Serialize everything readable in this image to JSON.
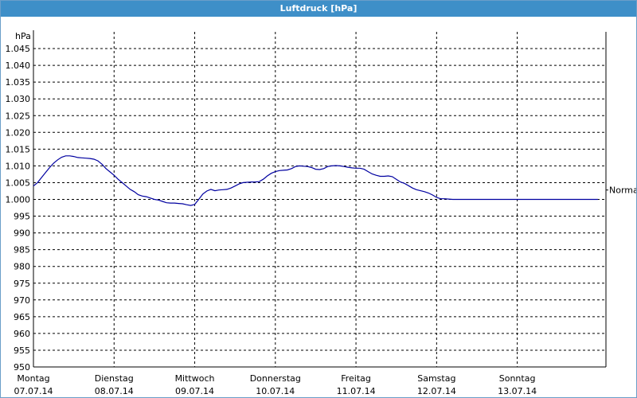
{
  "window": {
    "title": "Luftdruck [hPa]"
  },
  "chart_data": {
    "type": "line",
    "title": "Luftdruck [hPa]",
    "ylabel": "hPa",
    "xlabel": "",
    "ylim": [
      950,
      1050
    ],
    "yticks": [
      {
        "v": 950,
        "label": "950"
      },
      {
        "v": 955,
        "label": "955"
      },
      {
        "v": 960,
        "label": "960"
      },
      {
        "v": 965,
        "label": "965"
      },
      {
        "v": 970,
        "label": "970"
      },
      {
        "v": 975,
        "label": "975"
      },
      {
        "v": 980,
        "label": "980"
      },
      {
        "v": 985,
        "label": "985"
      },
      {
        "v": 990,
        "label": "990"
      },
      {
        "v": 995,
        "label": "995"
      },
      {
        "v": 1000,
        "label": "1.000"
      },
      {
        "v": 1005,
        "label": "1.005"
      },
      {
        "v": 1010,
        "label": "1.010"
      },
      {
        "v": 1015,
        "label": "1.015"
      },
      {
        "v": 1020,
        "label": "1.020"
      },
      {
        "v": 1025,
        "label": "1.025"
      },
      {
        "v": 1030,
        "label": "1.030"
      },
      {
        "v": 1035,
        "label": "1.035"
      },
      {
        "v": 1040,
        "label": "1.040"
      },
      {
        "v": 1045,
        "label": "1.045"
      }
    ],
    "xlim": [
      0,
      7.1
    ],
    "days": [
      {
        "weekday": "Montag",
        "date": "07.07.14"
      },
      {
        "weekday": "Dienstag",
        "date": "08.07.14"
      },
      {
        "weekday": "Mittwoch",
        "date": "09.07.14"
      },
      {
        "weekday": "Donnerstag",
        "date": "10.07.14"
      },
      {
        "weekday": "Freitag",
        "date": "11.07.14"
      },
      {
        "weekday": "Samstag",
        "date": "12.07.14"
      },
      {
        "weekday": "Sonntag",
        "date": "13.07.14"
      }
    ],
    "reference_line": {
      "label": "Normal",
      "value": 1002.8
    },
    "grid": true,
    "series": [
      {
        "color": "#0000a0",
        "x": [
          0.0,
          0.05,
          0.1,
          0.15,
          0.2,
          0.25,
          0.3,
          0.35,
          0.4,
          0.45,
          0.5,
          0.55,
          0.6,
          0.65,
          0.7,
          0.75,
          0.8,
          0.85,
          0.9,
          0.95,
          1.0,
          1.05,
          1.1,
          1.15,
          1.2,
          1.25,
          1.3,
          1.35,
          1.4,
          1.45,
          1.5,
          1.55,
          1.6,
          1.65,
          1.7,
          1.75,
          1.8,
          1.85,
          1.9,
          1.95,
          2.0,
          2.05,
          2.1,
          2.15,
          2.2,
          2.25,
          2.3,
          2.35,
          2.4,
          2.45,
          2.5,
          2.55,
          2.6,
          2.65,
          2.7,
          2.75,
          2.8,
          2.85,
          2.9,
          2.95,
          3.0,
          3.05,
          3.1,
          3.15,
          3.2,
          3.25,
          3.3,
          3.35,
          3.4,
          3.45,
          3.5,
          3.55,
          3.6,
          3.65,
          3.7,
          3.75,
          3.8,
          3.85,
          3.9,
          3.95,
          4.0,
          4.05,
          4.1,
          4.15,
          4.2,
          4.25,
          4.3,
          4.35,
          4.4,
          4.45,
          4.5,
          4.55,
          4.6,
          4.65,
          4.7,
          4.75,
          4.8,
          4.85,
          4.9,
          4.95,
          5.0,
          5.05,
          5.1,
          5.15,
          5.2,
          5.25,
          5.3,
          5.35,
          5.4,
          5.45,
          5.5,
          5.55,
          5.6,
          5.65,
          5.7,
          5.75,
          5.8,
          5.85,
          5.9,
          5.95,
          6.0,
          6.05,
          6.1,
          6.15,
          6.2,
          6.25,
          6.3,
          6.35,
          6.4,
          6.45,
          6.5,
          6.55,
          6.6,
          6.65,
          6.7,
          6.75,
          6.8,
          6.85,
          6.9,
          6.95,
          7.0
        ],
        "y": [
          1004.0,
          1005.0,
          1006.5,
          1008.0,
          1009.5,
          1010.8,
          1011.8,
          1012.6,
          1013.0,
          1013.0,
          1012.8,
          1012.5,
          1012.4,
          1012.3,
          1012.2,
          1012.0,
          1011.5,
          1010.5,
          1009.2,
          1008.2,
          1007.2,
          1006.0,
          1005.0,
          1004.0,
          1003.0,
          1002.3,
          1001.4,
          1001.0,
          1000.8,
          1000.4,
          1000.0,
          999.8,
          999.4,
          999.0,
          998.9,
          998.9,
          998.8,
          998.7,
          998.4,
          998.2,
          998.5,
          1000.0,
          1001.6,
          1002.5,
          1003.0,
          1002.6,
          1002.8,
          1002.9,
          1003.0,
          1003.4,
          1004.0,
          1004.6,
          1005.0,
          1005.1,
          1005.2,
          1005.2,
          1005.3,
          1006.0,
          1007.0,
          1007.8,
          1008.3,
          1008.6,
          1008.7,
          1008.8,
          1009.2,
          1009.8,
          1010.0,
          1009.9,
          1009.8,
          1009.5,
          1009.0,
          1008.9,
          1009.2,
          1009.8,
          1010.0,
          1010.1,
          1010.0,
          1009.8,
          1009.6,
          1009.4,
          1009.3,
          1009.3,
          1009.0,
          1008.3,
          1007.6,
          1007.2,
          1006.9,
          1006.9,
          1007.0,
          1006.8,
          1006.0,
          1005.2,
          1004.8,
          1004.1,
          1003.4,
          1002.9,
          1002.6,
          1002.3,
          1001.9,
          1001.3,
          1000.6,
          1000.2,
          1000.2,
          1000.1,
          1000.0,
          1000.0,
          1000.0,
          1000.0,
          1000.0,
          1000.0,
          1000.0,
          1000.0,
          1000.0,
          1000.0,
          1000.0,
          1000.0,
          1000.0,
          1000.0,
          1000.0,
          1000.0,
          1000.0,
          1000.0,
          1000.0,
          1000.0,
          1000.0,
          1000.0,
          1000.0,
          1000.0,
          1000.0,
          1000.0,
          1000.0,
          1000.0,
          1000.0,
          1000.0,
          1000.0,
          1000.0,
          1000.0,
          1000.0,
          1000.0,
          1000.0,
          1000.0
        ]
      }
    ]
  }
}
